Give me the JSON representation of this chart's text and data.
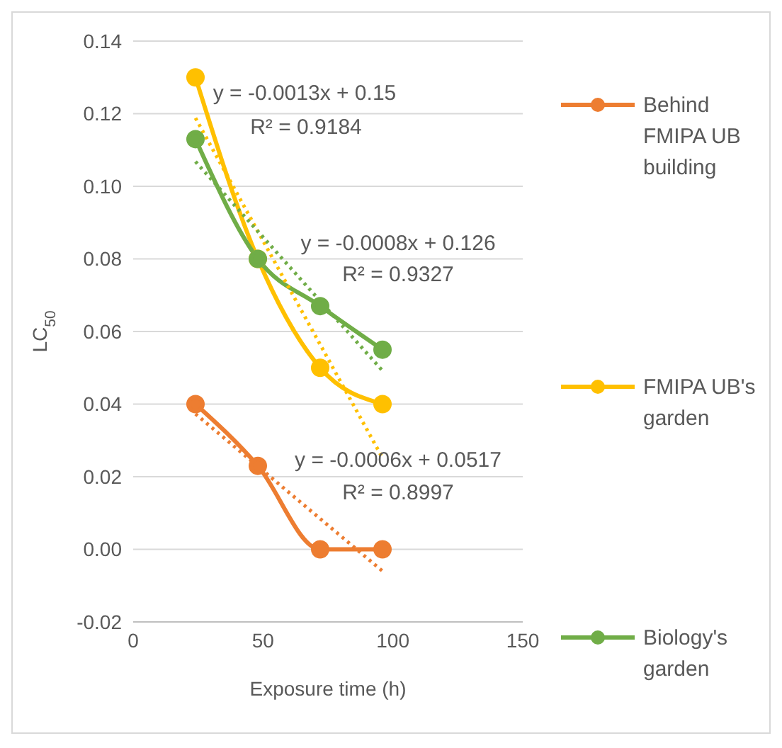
{
  "chart_data": {
    "type": "line",
    "xlabel": "Exposure time (h)",
    "ylabel": "LC$_{50}$",
    "xlim": [
      0,
      150
    ],
    "xticks": [
      0,
      50,
      100,
      150
    ],
    "ylim": [
      -0.02,
      0.14
    ],
    "yticks": [
      {
        "value": -0.02,
        "label": "-0.02"
      },
      {
        "value": 0,
        "label": "0.00"
      },
      {
        "value": 0.02,
        "label": "0.02"
      },
      {
        "value": 0.04,
        "label": "0.04"
      },
      {
        "value": 0.06,
        "label": "0.06"
      },
      {
        "value": 0.08,
        "label": "0.08"
      },
      {
        "value": 0.1,
        "label": "0.10"
      },
      {
        "value": 0.12,
        "label": "0.12"
      },
      {
        "value": 0.14,
        "label": "0.14"
      }
    ],
    "grid": "y",
    "legend": "right",
    "marker": "circle",
    "series": [
      {
        "name": "Behind FMIPA UB building",
        "color": "#ed7d31",
        "x": [
          24,
          48,
          72,
          96
        ],
        "values": [
          0.04,
          0.023,
          0,
          0
        ]
      },
      {
        "name": "FMIPA UB's garden",
        "color": "#ffc000",
        "x": [
          24,
          48,
          72,
          96
        ],
        "values": [
          0.13,
          0.08,
          0.05,
          0.04
        ]
      },
      {
        "name": "Biology's garden",
        "color": "#70ad47",
        "x": [
          24,
          48,
          72,
          96
        ],
        "values": [
          0.113,
          0.08,
          0.067,
          0.055
        ]
      },
      {
        "type": "line",
        "color": "#ed7d31",
        "line_style": "dotted",
        "marker": "none",
        "x": [
          24,
          96
        ],
        "values": [
          0.0373,
          -0.006
        ]
      },
      {
        "type": "line",
        "color": "#ffc000",
        "line_style": "dotted",
        "marker": "none",
        "x": [
          24,
          96
        ],
        "values": [
          0.1188,
          0.0252
        ]
      },
      {
        "type": "line",
        "color": "#70ad47",
        "line_style": "dotted",
        "marker": "none",
        "x": [
          24,
          96
        ],
        "values": [
          0.1068,
          0.0492
        ]
      }
    ],
    "annotations": [
      "y = -0.0013x + 0.15",
      "R² = 0.9184",
      "y = -0.0008x + 0.126",
      "R² = 0.9327",
      "y = -0.0006x + 0.0517",
      "R² = 0.8997"
    ]
  }
}
